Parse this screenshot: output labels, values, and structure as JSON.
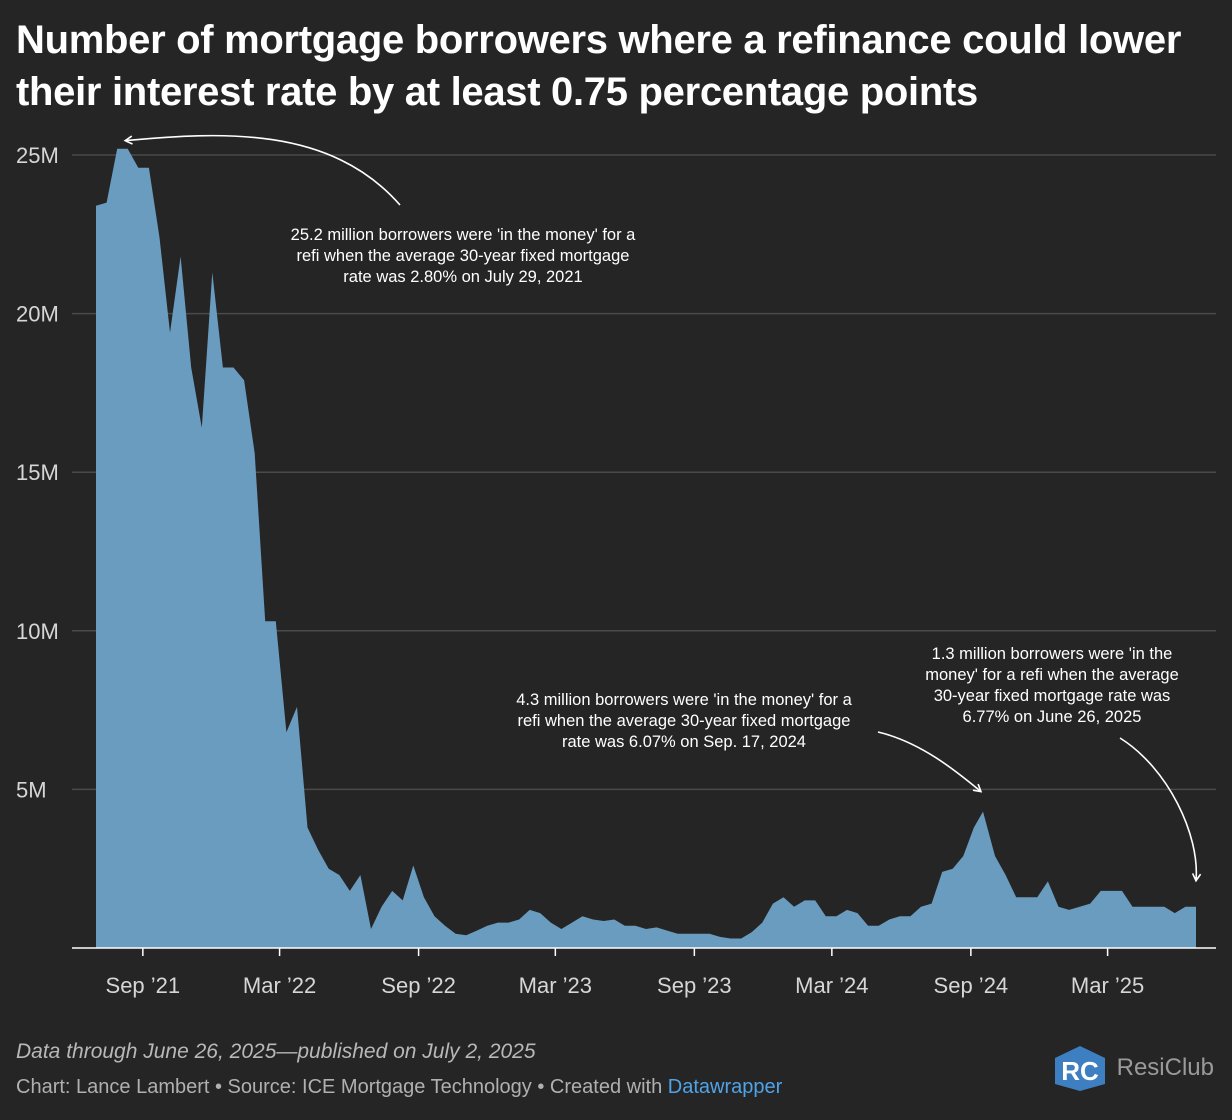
{
  "title": "Number of mortgage borrowers where a refinance could lower their interest rate by at least 0.75 percentage points",
  "footer": {
    "note": "Data through June 26, 2025—published on July 2, 2025",
    "credit_prefix": "Chart: Lance Lambert • Source: ICE Mortgage Technology • Created with ",
    "credit_link": "Datawrapper",
    "logo_mark": "RC",
    "logo_text": "ResiClub"
  },
  "colors": {
    "background": "#252525",
    "area": "#6a9cbf",
    "grid": "#4a4a4a",
    "text": "#ffffff",
    "axis_text": "#d6d6d6",
    "link": "#4fa3e8"
  },
  "chart_data": {
    "type": "area",
    "title": "Number of mortgage borrowers where a refinance could lower their interest rate by at least 0.75 percentage points",
    "xlabel": "",
    "ylabel": "",
    "ylim": [
      0,
      25000000
    ],
    "y_ticks": [
      5000000,
      10000000,
      15000000,
      20000000,
      25000000
    ],
    "y_tick_labels": [
      "5M",
      "10M",
      "15M",
      "20M",
      "25M"
    ],
    "x_ticks": [
      "2021-09-01",
      "2022-03-01",
      "2022-09-01",
      "2023-03-01",
      "2023-09-01",
      "2024-03-01",
      "2024-09-01",
      "2025-03-01"
    ],
    "x_tick_labels": [
      "Sep ’21",
      "Mar ’22",
      "Sep ’22",
      "Mar ’23",
      "Sep ’23",
      "Mar ’24",
      "Sep ’24",
      "Mar ’25"
    ],
    "grid": true,
    "series": [
      {
        "name": "",
        "points": [
          [
            "2021-07-01",
            23.4
          ],
          [
            "2021-07-15",
            23.5
          ],
          [
            "2021-07-29",
            25.2
          ],
          [
            "2021-08-12",
            25.2
          ],
          [
            "2021-08-26",
            24.6
          ],
          [
            "2021-09-09",
            24.6
          ],
          [
            "2021-09-23",
            22.4
          ],
          [
            "2021-10-07",
            19.4
          ],
          [
            "2021-10-21",
            21.8
          ],
          [
            "2021-11-04",
            18.3
          ],
          [
            "2021-11-18",
            16.4
          ],
          [
            "2021-12-02",
            21.3
          ],
          [
            "2021-12-16",
            18.3
          ],
          [
            "2021-12-30",
            18.3
          ],
          [
            "2022-01-13",
            17.9
          ],
          [
            "2022-01-27",
            15.6
          ],
          [
            "2022-02-10",
            10.3
          ],
          [
            "2022-02-24",
            10.3
          ],
          [
            "2022-03-10",
            6.8
          ],
          [
            "2022-03-24",
            7.6
          ],
          [
            "2022-04-07",
            3.8
          ],
          [
            "2022-04-21",
            3.1
          ],
          [
            "2022-05-05",
            2.5
          ],
          [
            "2022-05-19",
            2.3
          ],
          [
            "2022-06-02",
            1.8
          ],
          [
            "2022-06-16",
            2.3
          ],
          [
            "2022-06-30",
            0.6
          ],
          [
            "2022-07-14",
            1.3
          ],
          [
            "2022-07-28",
            1.8
          ],
          [
            "2022-08-11",
            1.5
          ],
          [
            "2022-08-25",
            2.6
          ],
          [
            "2022-09-08",
            1.6
          ],
          [
            "2022-09-22",
            1.0
          ],
          [
            "2022-10-06",
            0.7
          ],
          [
            "2022-10-20",
            0.45
          ],
          [
            "2022-11-03",
            0.4
          ],
          [
            "2022-11-17",
            0.55
          ],
          [
            "2022-12-01",
            0.7
          ],
          [
            "2022-12-15",
            0.8
          ],
          [
            "2022-12-29",
            0.8
          ],
          [
            "2023-01-12",
            0.9
          ],
          [
            "2023-01-26",
            1.2
          ],
          [
            "2023-02-09",
            1.1
          ],
          [
            "2023-02-23",
            0.8
          ],
          [
            "2023-03-09",
            0.6
          ],
          [
            "2023-03-23",
            0.8
          ],
          [
            "2023-04-06",
            1.0
          ],
          [
            "2023-04-20",
            0.9
          ],
          [
            "2023-05-04",
            0.85
          ],
          [
            "2023-05-18",
            0.9
          ],
          [
            "2023-06-01",
            0.7
          ],
          [
            "2023-06-15",
            0.7
          ],
          [
            "2023-06-29",
            0.6
          ],
          [
            "2023-07-13",
            0.65
          ],
          [
            "2023-07-27",
            0.55
          ],
          [
            "2023-08-10",
            0.45
          ],
          [
            "2023-08-24",
            0.45
          ],
          [
            "2023-09-07",
            0.45
          ],
          [
            "2023-09-21",
            0.45
          ],
          [
            "2023-10-05",
            0.35
          ],
          [
            "2023-10-19",
            0.3
          ],
          [
            "2023-11-02",
            0.3
          ],
          [
            "2023-11-16",
            0.5
          ],
          [
            "2023-11-30",
            0.8
          ],
          [
            "2023-12-14",
            1.4
          ],
          [
            "2023-12-28",
            1.6
          ],
          [
            "2024-01-11",
            1.3
          ],
          [
            "2024-01-25",
            1.5
          ],
          [
            "2024-02-08",
            1.5
          ],
          [
            "2024-02-22",
            1.0
          ],
          [
            "2024-03-07",
            1.0
          ],
          [
            "2024-03-21",
            1.2
          ],
          [
            "2024-04-04",
            1.1
          ],
          [
            "2024-04-18",
            0.7
          ],
          [
            "2024-05-02",
            0.7
          ],
          [
            "2024-05-16",
            0.9
          ],
          [
            "2024-05-30",
            1.0
          ],
          [
            "2024-06-13",
            1.0
          ],
          [
            "2024-06-27",
            1.3
          ],
          [
            "2024-07-11",
            1.4
          ],
          [
            "2024-07-25",
            2.4
          ],
          [
            "2024-08-08",
            2.5
          ],
          [
            "2024-08-22",
            2.9
          ],
          [
            "2024-09-05",
            3.8
          ],
          [
            "2024-09-17",
            4.3
          ],
          [
            "2024-10-03",
            2.9
          ],
          [
            "2024-10-17",
            2.3
          ],
          [
            "2024-10-31",
            1.6
          ],
          [
            "2024-11-14",
            1.6
          ],
          [
            "2024-11-28",
            1.6
          ],
          [
            "2024-12-12",
            2.1
          ],
          [
            "2024-12-26",
            1.3
          ],
          [
            "2025-01-09",
            1.2
          ],
          [
            "2025-01-23",
            1.3
          ],
          [
            "2025-02-06",
            1.4
          ],
          [
            "2025-02-20",
            1.8
          ],
          [
            "2025-03-06",
            1.8
          ],
          [
            "2025-03-20",
            1.8
          ],
          [
            "2025-04-03",
            1.3
          ],
          [
            "2025-04-17",
            1.3
          ],
          [
            "2025-05-01",
            1.3
          ],
          [
            "2025-05-15",
            1.3
          ],
          [
            "2025-05-29",
            1.1
          ],
          [
            "2025-06-12",
            1.3
          ],
          [
            "2025-06-26",
            1.3
          ]
        ]
      }
    ],
    "annotations": [
      {
        "text": [
          "25.2 million borrowers were 'in the money' for a",
          "refi when the average 30-year fixed mortgage",
          "rate was 2.80% on July 29, 2021"
        ],
        "target": [
          "2021-07-29",
          25.2
        ]
      },
      {
        "text": [
          "4.3 million borrowers were 'in the money' for a",
          "refi when the average 30-year fixed mortgage",
          "rate was 6.07% on Sep. 17, 2024"
        ],
        "target": [
          "2024-09-17",
          4.3
        ]
      },
      {
        "text": [
          "1.3 million borrowers were 'in the",
          "money' for a refi when the average",
          "30-year fixed mortgage rate was",
          "6.77% on June 26, 2025"
        ],
        "target": [
          "2025-06-26",
          1.3
        ]
      }
    ]
  }
}
